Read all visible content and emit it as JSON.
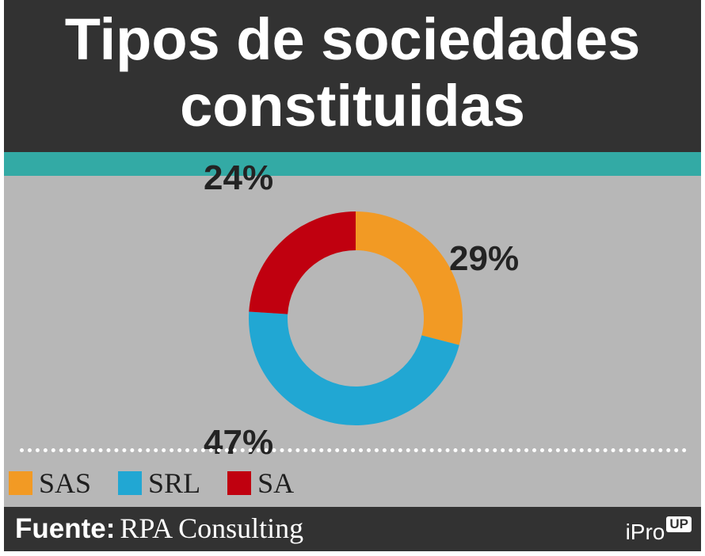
{
  "header": {
    "title": "Tipos de sociedades constituidas"
  },
  "chart_data": {
    "type": "pie",
    "hole": true,
    "categories": [
      "SAS",
      "SRL",
      "SA"
    ],
    "values": [
      29,
      47,
      24
    ],
    "labels": [
      "29%",
      "47%",
      "24%"
    ],
    "colors": [
      "#f29a24",
      "#21a7d3",
      "#c0000f"
    ],
    "legend_position": "bottom"
  },
  "footer": {
    "source_label": "Fuente:",
    "source_value": "RPA Consulting",
    "logo_text": "iPro",
    "logo_badge": "UP"
  }
}
